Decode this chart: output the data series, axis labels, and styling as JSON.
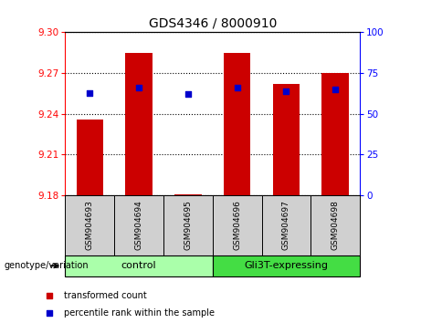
{
  "title": "GDS4346 / 8000910",
  "samples": [
    "GSM904693",
    "GSM904694",
    "GSM904695",
    "GSM904696",
    "GSM904697",
    "GSM904698"
  ],
  "transformed_count": [
    9.236,
    9.285,
    9.181,
    9.285,
    9.262,
    9.27
  ],
  "percentile_rank": [
    63,
    66,
    62,
    66,
    64,
    65
  ],
  "ylim_left": [
    9.18,
    9.3
  ],
  "ylim_right": [
    0,
    100
  ],
  "yticks_left": [
    9.18,
    9.21,
    9.24,
    9.27,
    9.3
  ],
  "yticks_right": [
    0,
    25,
    50,
    75,
    100
  ],
  "bar_color": "#cc0000",
  "dot_color": "#0000cc",
  "bar_bottom": 9.18,
  "bar_width": 0.55,
  "groups": [
    {
      "label": "control",
      "indices": [
        0,
        1,
        2
      ],
      "color": "#aaffaa"
    },
    {
      "label": "Gli3T-expressing",
      "indices": [
        3,
        4,
        5
      ],
      "color": "#44dd44"
    }
  ],
  "group_label": "genotype/variation",
  "legend_items": [
    {
      "label": "transformed count",
      "color": "#cc0000"
    },
    {
      "label": "percentile rank within the sample",
      "color": "#0000cc"
    }
  ],
  "title_fontsize": 10,
  "tick_fontsize": 7.5,
  "sample_fontsize": 6.5,
  "group_fontsize": 8,
  "legend_fontsize": 7
}
